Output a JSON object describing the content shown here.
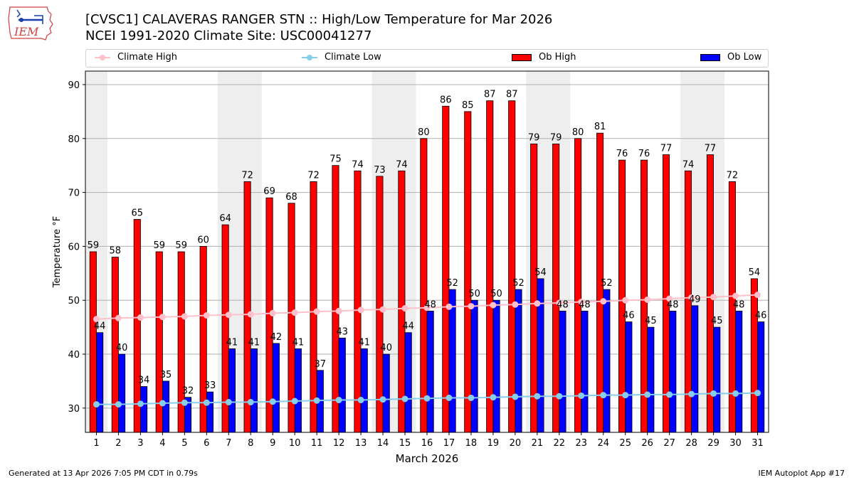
{
  "header": {
    "title_line1": "[CVSC1] CALAVERAS RANGER STN :: High/Low Temperature for Mar 2026",
    "title_line2": "NCEI 1991-2020 Climate Site: USC00041277",
    "logo_text": "IEM"
  },
  "legend": {
    "items": [
      {
        "label": "Climate High",
        "color": "#ffc0cb",
        "kind": "line"
      },
      {
        "label": "Climate Low",
        "color": "#87ceeb",
        "kind": "line"
      },
      {
        "label": "Ob High",
        "color": "#ff0000",
        "kind": "bar"
      },
      {
        "label": "Ob Low",
        "color": "#0000ff",
        "kind": "bar"
      }
    ]
  },
  "footer": {
    "generated": "Generated at 13 Apr 2026 7:05 PM CDT in 0.79s",
    "app": "IEM Autoplot App #17"
  },
  "chart_data": {
    "type": "bar",
    "title": "[CVSC1] CALAVERAS RANGER STN :: High/Low Temperature for Mar 2026",
    "subtitle": "NCEI 1991-2020 Climate Site: USC00041277",
    "xlabel": "March 2026",
    "ylabel": "Temperature °F",
    "ylim": [
      25.5,
      92.5
    ],
    "yticks": [
      30,
      40,
      50,
      60,
      70,
      80,
      90
    ],
    "grid": "horizontal",
    "legend_position": "top",
    "categories": [
      "1",
      "2",
      "3",
      "4",
      "5",
      "6",
      "7",
      "8",
      "9",
      "10",
      "11",
      "12",
      "13",
      "14",
      "15",
      "16",
      "17",
      "18",
      "19",
      "20",
      "21",
      "22",
      "23",
      "24",
      "25",
      "26",
      "27",
      "28",
      "29",
      "30",
      "31"
    ],
    "weekend_shading_days": [
      [
        1,
        1
      ],
      [
        7,
        8
      ],
      [
        14,
        15
      ],
      [
        21,
        22
      ],
      [
        28,
        29
      ]
    ],
    "series": [
      {
        "name": "Ob High",
        "type": "bar",
        "color": "#ff0000",
        "values": [
          59,
          58,
          65,
          59,
          59,
          60,
          64,
          72,
          69,
          68,
          72,
          75,
          74,
          73,
          74,
          80,
          86,
          85,
          87,
          87,
          79,
          79,
          80,
          81,
          76,
          76,
          77,
          74,
          77,
          72,
          54
        ]
      },
      {
        "name": "Ob Low",
        "type": "bar",
        "color": "#0000ff",
        "values": [
          44,
          40,
          34,
          35,
          32,
          33,
          41,
          41,
          42,
          41,
          37,
          43,
          41,
          40,
          44,
          48,
          52,
          50,
          50,
          52,
          54,
          48,
          48,
          52,
          46,
          45,
          48,
          49,
          45,
          48,
          46
        ]
      },
      {
        "name": "Climate High",
        "type": "line",
        "color": "#ffc0cb",
        "values": [
          46.5,
          46.7,
          46.8,
          46.9,
          47.0,
          47.2,
          47.3,
          47.4,
          47.6,
          47.7,
          47.9,
          48.0,
          48.2,
          48.3,
          48.5,
          48.6,
          48.8,
          48.9,
          49.1,
          49.2,
          49.4,
          49.5,
          49.7,
          49.8,
          50.0,
          50.1,
          50.3,
          50.5,
          50.6,
          50.8,
          51.0
        ]
      },
      {
        "name": "Climate Low",
        "type": "line",
        "color": "#87ceeb",
        "values": [
          30.7,
          30.7,
          30.8,
          30.9,
          31.0,
          31.0,
          31.1,
          31.1,
          31.2,
          31.3,
          31.4,
          31.5,
          31.5,
          31.6,
          31.7,
          31.8,
          31.9,
          31.9,
          32.0,
          32.1,
          32.2,
          32.2,
          32.3,
          32.4,
          32.4,
          32.5,
          32.5,
          32.6,
          32.7,
          32.7,
          32.8
        ]
      }
    ]
  }
}
